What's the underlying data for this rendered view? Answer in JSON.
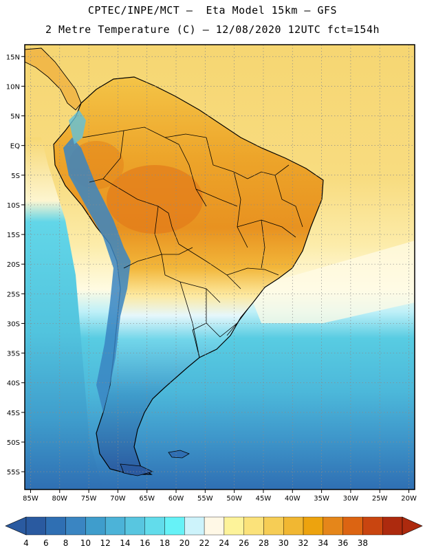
{
  "header": {
    "line1": "CPTEC/INPE/MCT –  Eta Model 15km – GFS",
    "line2": "2 Metre Temperature (C) – 12/08/2020 12UTC fct=154h"
  },
  "axes": {
    "lat_labels": [
      "15N",
      "10N",
      "5N",
      "EQ",
      "5S",
      "10S",
      "15S",
      "20S",
      "25S",
      "30S",
      "35S",
      "40S",
      "45S",
      "50S",
      "55S"
    ],
    "lat_values": [
      15,
      10,
      5,
      0,
      -5,
      -10,
      -15,
      -20,
      -25,
      -30,
      -35,
      -40,
      -45,
      -50,
      -55
    ],
    "lon_labels": [
      "85W",
      "80W",
      "75W",
      "70W",
      "65W",
      "60W",
      "55W",
      "50W",
      "45W",
      "40W",
      "35W",
      "30W",
      "25W",
      "20W"
    ],
    "lon_values": [
      -85,
      -80,
      -75,
      -70,
      -65,
      -60,
      -55,
      -50,
      -45,
      -40,
      -35,
      -30,
      -25,
      -20
    ],
    "lat_range": [
      -58,
      17
    ],
    "lon_range": [
      -86,
      -19
    ],
    "grid": "dotted"
  },
  "colorbar": {
    "labels": [
      "4",
      "6",
      "8",
      "10",
      "12",
      "14",
      "16",
      "18",
      "20",
      "22",
      "24",
      "26",
      "28",
      "30",
      "32",
      "34",
      "36",
      "38"
    ],
    "colors": [
      "#2a5aa0",
      "#2f6fb3",
      "#3a85c2",
      "#3f9dcc",
      "#4cb3d8",
      "#58c6e0",
      "#62dceb",
      "#66f2f7",
      "#cdf3fb",
      "#fff8e6",
      "#fdf39a",
      "#fbe27a",
      "#f6cd55",
      "#f1b732",
      "#eda30e",
      "#e5861a",
      "#dc6412",
      "#c94510",
      "#ad2a0e"
    ],
    "left_arrow_color": "#2a5aa0",
    "right_arrow_color": "#ad2a0e"
  },
  "colors": {
    "ocean_north": "#f6d672",
    "ocean_south_pale": "#fffde8",
    "ocean_mid": "#4fc8e0",
    "ocean_south": "#3f9dcc",
    "ocean_deep": "#2f6fb3",
    "land_hot": "#e58a1c",
    "land_warm": "#f1b732",
    "land_mild": "#f8d35c",
    "andes": "#3a85c2",
    "coast_line": "#000000"
  }
}
